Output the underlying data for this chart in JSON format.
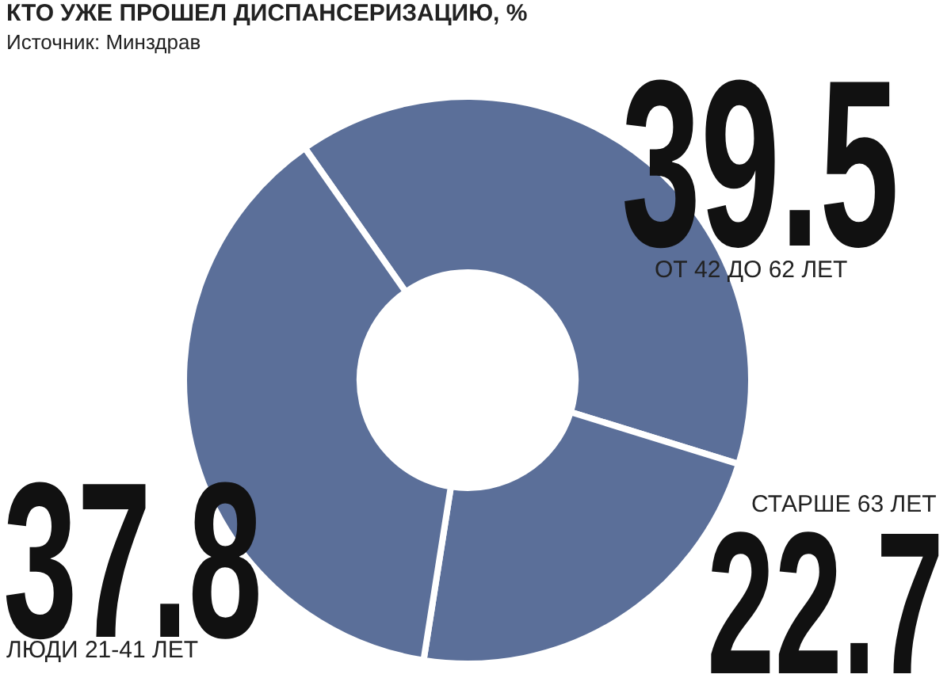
{
  "chart_data": {
    "type": "donut",
    "title": "КТО УЖЕ ПРОШЕЛ ДИСПАНСЕРИЗАЦИЮ, %",
    "annotations": [
      "Источник: Минздрав"
    ],
    "categories": [
      "ОТ 42 ДО 62 ЛЕТ",
      "СТАРШЕ 63 ЛЕТ",
      "ЛЮДИ 21-41 ЛЕТ"
    ],
    "values": [
      39.5,
      22.7,
      37.8
    ],
    "colors": [
      "#5b6f99",
      "#5b6f99",
      "#5b6f99"
    ],
    "data_labels": true,
    "legend": false
  }
}
